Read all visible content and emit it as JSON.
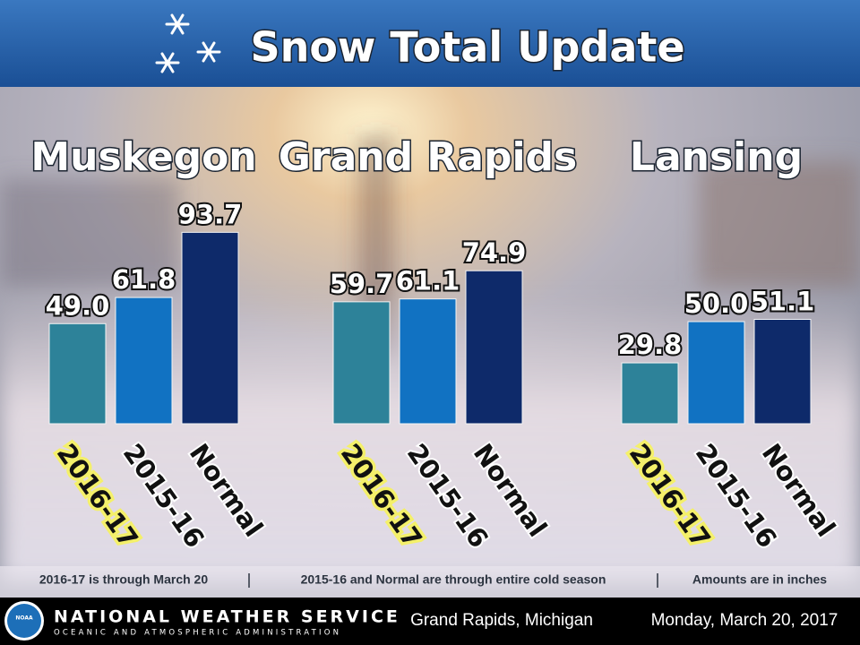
{
  "header": {
    "title": "Snow Total Update"
  },
  "chart_data": [
    {
      "type": "bar",
      "title": "Muskegon",
      "categories": [
        "2016-17",
        "2015-16",
        "Normal"
      ],
      "values": [
        49.0,
        61.8,
        93.7
      ],
      "value_labels": [
        "49.0",
        "61.8",
        "93.7"
      ],
      "colors": [
        "#2d8299",
        "#1172c2",
        "#0e2a6a"
      ]
    },
    {
      "type": "bar",
      "title": "Grand Rapids",
      "categories": [
        "2016-17",
        "2015-16",
        "Normal"
      ],
      "values": [
        59.7,
        61.1,
        74.9
      ],
      "value_labels": [
        "59.7",
        "61.1",
        "74.9"
      ],
      "colors": [
        "#2d8299",
        "#1172c2",
        "#0e2a6a"
      ]
    },
    {
      "type": "bar",
      "title": "Lansing",
      "categories": [
        "2016-17",
        "2015-16",
        "Normal"
      ],
      "values": [
        29.8,
        50.0,
        51.1
      ],
      "value_labels": [
        "29.8",
        "50.0",
        "51.1"
      ],
      "colors": [
        "#2d8299",
        "#1172c2",
        "#0e2a6a"
      ]
    }
  ],
  "notes": [
    "2016-17 is through March 20",
    "2015-16 and Normal are through entire cold season",
    "Amounts are in inches"
  ],
  "footer": {
    "agency": "NATIONAL WEATHER SERVICE",
    "subagency": "OCEANIC AND ATMOSPHERIC ADMINISTRATION",
    "logo": "NOAA",
    "office": "Grand Rapids, Michigan",
    "date": "Monday, March 20, 2017"
  }
}
